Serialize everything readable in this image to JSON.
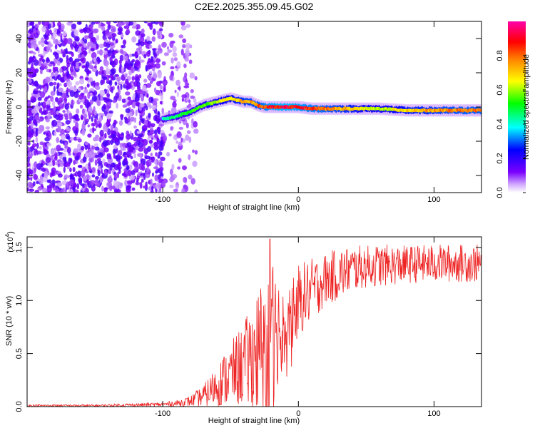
{
  "title": "C2E2.2025.355.09.45.G02",
  "chart_data": [
    {
      "type": "heatmap",
      "name": "spectrogram",
      "xlabel": "Height of straight line (km)",
      "ylabel": "Frequency (Hz)",
      "xlim": [
        -200,
        135
      ],
      "ylim": [
        -50,
        50
      ],
      "xticks": [
        -100,
        0,
        100
      ],
      "xtick_labels": [
        "-100",
        "0",
        "100"
      ],
      "yticks": [
        -40,
        -20,
        0,
        20,
        40
      ],
      "ytick_labels": [
        "-40",
        "-20",
        "0",
        "20",
        "40"
      ],
      "noise_region_x": [
        -200,
        -75
      ],
      "signal_start_x": -100,
      "ridge": {
        "x": [
          -100,
          -92,
          -85,
          -80,
          -75,
          -70,
          -65,
          -60,
          -55,
          -50,
          -45,
          -40,
          -35,
          -30,
          -25,
          -20,
          -10,
          0,
          10,
          20,
          40,
          60,
          80,
          100,
          120,
          135
        ],
        "freq": [
          -7,
          -6,
          -4,
          -3,
          -1,
          1,
          2,
          3,
          4,
          5,
          4,
          3,
          3,
          1,
          0,
          0,
          0,
          0,
          -1,
          -1,
          -1,
          -1,
          -2,
          -2,
          -2,
          -2
        ],
        "amplitude": [
          0.45,
          0.5,
          0.55,
          0.55,
          0.6,
          0.6,
          0.62,
          0.65,
          0.7,
          0.72,
          0.75,
          0.8,
          0.8,
          0.85,
          0.9,
          0.95,
          0.98,
          0.95,
          0.9,
          0.85,
          0.75,
          0.65,
          0.75,
          0.8,
          0.85,
          0.85
        ]
      },
      "colorbar": {
        "label": "Normalized spectral amplitude",
        "range": [
          0,
          1
        ],
        "ticks": [
          0.0,
          0.2,
          0.4,
          0.6,
          0.8
        ],
        "tick_labels": [
          "0.0",
          "0.2",
          "0.4",
          "0.6",
          "0.8"
        ],
        "colors": [
          "#ffffff",
          "#7a00ff",
          "#0000ff",
          "#00ffff",
          "#00ff00",
          "#ffff00",
          "#ff8000",
          "#ff0000",
          "#ff00aa"
        ]
      }
    },
    {
      "type": "line",
      "name": "snr",
      "xlabel": "Height of straight line (km)",
      "ylabel": "SNR (10 * v/v)",
      "scale_label": "(x10",
      "scale_exponent": "4",
      "scale_close": ")",
      "xlim": [
        -200,
        135
      ],
      "ylim": [
        0,
        1.6
      ],
      "xticks": [
        -100,
        0,
        100
      ],
      "xtick_labels": [
        "-100",
        "0",
        "100"
      ],
      "yticks": [
        0.0,
        0.5,
        1.0,
        1.5
      ],
      "ytick_labels": [
        "0.0",
        "0.5",
        "1.0",
        "1.5"
      ],
      "color": "#ee2222",
      "x": [
        -200,
        -150,
        -100,
        -90,
        -80,
        -70,
        -60,
        -50,
        -40,
        -30,
        -25,
        -20,
        -10,
        0,
        10,
        20,
        30,
        40,
        50,
        60,
        80,
        100,
        120,
        135
      ],
      "y": [
        0.01,
        0.01,
        0.02,
        0.03,
        0.05,
        0.1,
        0.2,
        0.3,
        0.4,
        0.5,
        0.6,
        0.7,
        0.8,
        1.0,
        1.1,
        1.2,
        1.25,
        1.3,
        1.32,
        1.33,
        1.34,
        1.35,
        1.35,
        1.35
      ],
      "spread": [
        0.01,
        0.01,
        0.02,
        0.03,
        0.05,
        0.1,
        0.2,
        0.3,
        0.4,
        0.6,
        0.8,
        0.7,
        0.4,
        0.35,
        0.3,
        0.25,
        0.25,
        0.22,
        0.2,
        0.2,
        0.18,
        0.18,
        0.18,
        0.18
      ],
      "spike": {
        "x": -21,
        "y": 1.58
      }
    }
  ]
}
